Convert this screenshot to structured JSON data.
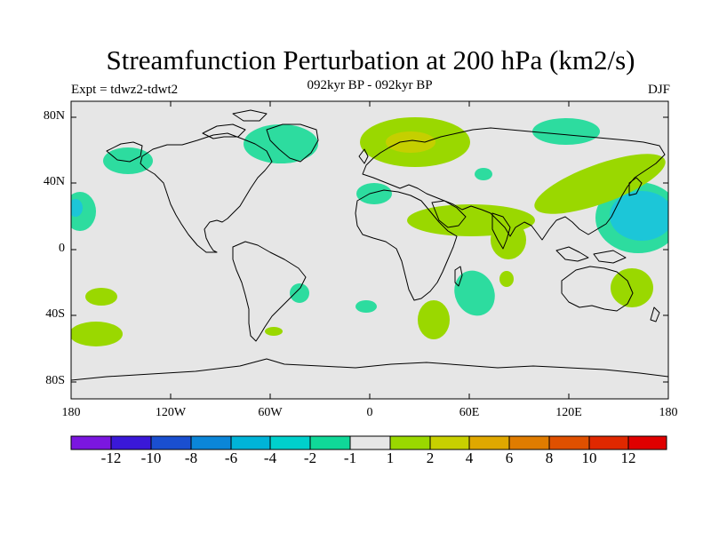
{
  "title": "Streamfunction Perturbation at 200 hPa (km2/s)",
  "subtitle": "092kyr BP - 092kyr BP",
  "left_label": "Expt = tdwz2-tdwt2",
  "right_label": "DJF",
  "lat_labels": [
    "80N",
    "40N",
    "0",
    "40S",
    "80S"
  ],
  "lon_labels": [
    "180",
    "120W",
    "60W",
    "0",
    "60E",
    "120E",
    "180"
  ],
  "colorbar": {
    "labels": [
      "-12",
      "-10",
      "-8",
      "-6",
      "-4",
      "-2",
      "-1",
      "1",
      "2",
      "4",
      "6",
      "8",
      "10",
      "12"
    ],
    "colors": [
      "#7b16e0",
      "#3a18d8",
      "#1a4fd0",
      "#0b86d8",
      "#00b4d8",
      "#00d0cc",
      "#10d898",
      "#e6e6e6",
      "#9ad800",
      "#c8d000",
      "#e0a800",
      "#e07c00",
      "#e05000",
      "#e02800",
      "#e00000"
    ]
  },
  "map": {
    "background_color": "#e6e6e6",
    "colors": {
      "neg_1_2": "#2ddc9f",
      "neg_2_4": "#26d6c9",
      "neg_4_6": "#1cc6d8",
      "pos_1_2": "#9ad800",
      "pos_2_4": "#c5cf00"
    }
  }
}
